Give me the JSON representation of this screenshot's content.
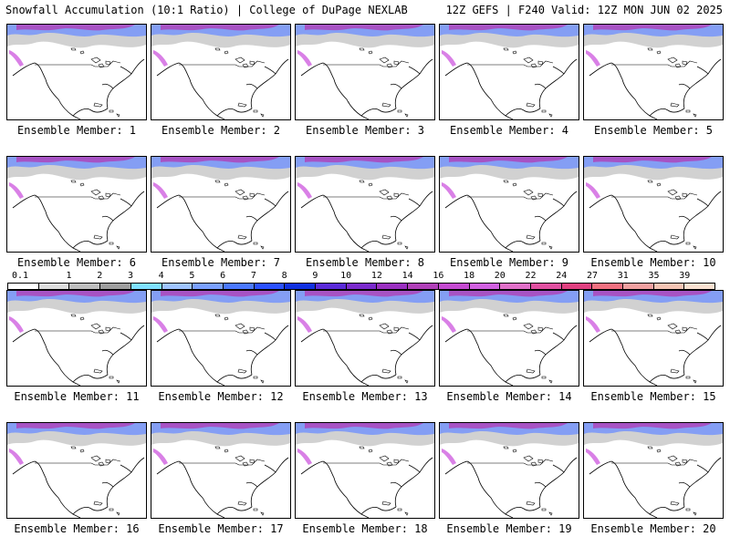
{
  "header": {
    "left_title": "Snowfall Accumulation (10:1 Ratio) | College of DuPage NEXLAB",
    "right_title": "12Z GEFS | F240 Valid: 12Z MON JUN 02 2025"
  },
  "members": [
    {
      "label": "Ensemble Member: 1"
    },
    {
      "label": "Ensemble Member: 2"
    },
    {
      "label": "Ensemble Member: 3"
    },
    {
      "label": "Ensemble Member: 4"
    },
    {
      "label": "Ensemble Member: 5"
    },
    {
      "label": "Ensemble Member: 6"
    },
    {
      "label": "Ensemble Member: 7"
    },
    {
      "label": "Ensemble Member: 8"
    },
    {
      "label": "Ensemble Member: 9"
    },
    {
      "label": "Ensemble Member: 10"
    },
    {
      "label": "Ensemble Member: 11"
    },
    {
      "label": "Ensemble Member: 12"
    },
    {
      "label": "Ensemble Member: 13"
    },
    {
      "label": "Ensemble Member: 14"
    },
    {
      "label": "Ensemble Member: 15"
    },
    {
      "label": "Ensemble Member: 16"
    },
    {
      "label": "Ensemble Member: 17"
    },
    {
      "label": "Ensemble Member: 18"
    },
    {
      "label": "Ensemble Member: 19"
    },
    {
      "label": "Ensemble Member: 20"
    }
  ],
  "colorbar": {
    "ticks": [
      "0.1",
      "1",
      "2",
      "3",
      "4",
      "5",
      "6",
      "7",
      "8",
      "9",
      "10",
      "12",
      "14",
      "16",
      "18",
      "20",
      "22",
      "24",
      "27",
      "31",
      "35",
      "39"
    ],
    "colors": [
      "#ffffff",
      "#dcdcdc",
      "#bdbdbd",
      "#9e9e9e",
      "#7fe0ff",
      "#9fc4ff",
      "#7aa0ff",
      "#4a78ff",
      "#2a50ff",
      "#1030e0",
      "#5a2ad8",
      "#7a2acc",
      "#9a30c0",
      "#b040b8",
      "#c44ad0",
      "#d060e0",
      "#e070c8",
      "#e050a0",
      "#e04080",
      "#f07080",
      "#f0a0a0",
      "#f4c4b4",
      "#f8e0d0"
    ]
  }
}
